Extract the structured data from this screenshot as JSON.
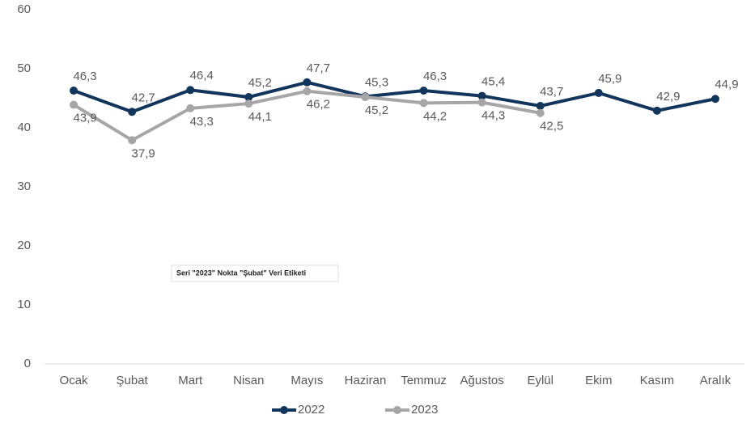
{
  "chart_data": {
    "type": "line",
    "categories": [
      "Ocak",
      "Şubat",
      "Mart",
      "Nisan",
      "Mayıs",
      "Haziran",
      "Temmuz",
      "Ağustos",
      "Eylül",
      "Ekim",
      "Kasım",
      "Aralık"
    ],
    "series": [
      {
        "name": "2022",
        "color": "#12355b",
        "values": [
          46.3,
          42.7,
          46.4,
          45.2,
          47.7,
          45.3,
          46.3,
          45.4,
          43.7,
          45.9,
          42.9,
          44.9
        ],
        "value_labels": [
          "46,3",
          "42,7",
          "46,4",
          "45,2",
          "47,7",
          "45,3",
          "46,3",
          "45,4",
          "43,7",
          "45,9",
          "42,9",
          "44,9"
        ]
      },
      {
        "name": "2023",
        "color": "#a6a6a6",
        "values": [
          43.9,
          37.9,
          43.3,
          44.1,
          46.2,
          45.2,
          44.2,
          44.3,
          42.5,
          null,
          null,
          null
        ],
        "value_labels": [
          "43,9",
          "37,9",
          "43,3",
          "44,1",
          "46,2",
          "45,2",
          "44,2",
          "44,3",
          "42,5",
          null,
          null,
          null
        ]
      }
    ],
    "ylim": [
      0,
      60
    ],
    "yticks": [
      0,
      10,
      20,
      30,
      40,
      50,
      60
    ],
    "legend": "bottom",
    "tooltip": "Seri \"2023\" Nokta \"Şubat\" Veri Etiketi"
  }
}
